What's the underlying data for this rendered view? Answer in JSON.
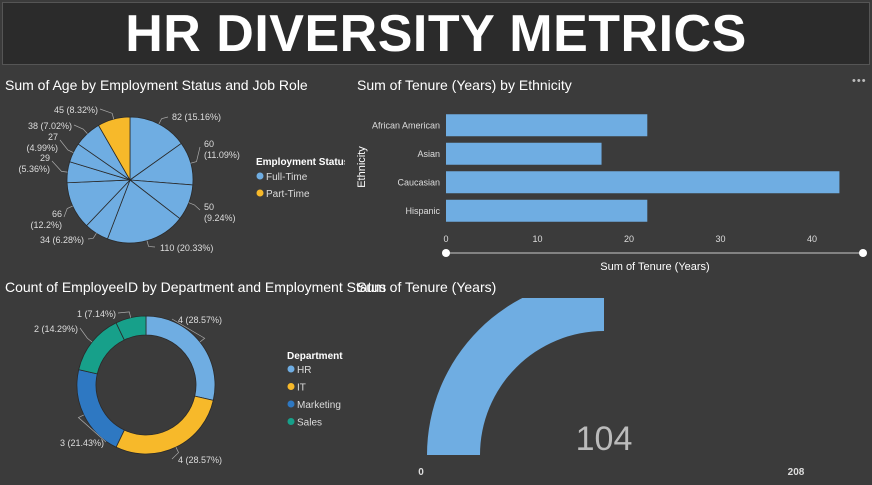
{
  "header": {
    "title": "HR DIVERSITY METRICS"
  },
  "colors": {
    "full_time": "#6fade2",
    "part_time": "#f7b92a",
    "hr": "#6fade2",
    "it": "#f7b92a",
    "marketing": "#2e78c2",
    "sales": "#17a08a",
    "bar": "#6fade2"
  },
  "panels": {
    "pie": {
      "title": "Sum of Age by Employment Status and Job Role"
    },
    "bar": {
      "title": "Sum of Tenure (Years) by Ethnicity",
      "more_icon": "more-options-icon"
    },
    "donut": {
      "title": "Count of EmployeeID by Department and Employment Status"
    },
    "gauge": {
      "title": "Sum of Tenure (Years)"
    }
  },
  "chart_data": [
    {
      "type": "pie",
      "title": "Sum of Age by Employment Status and Job Role",
      "legend": {
        "title": "Employment Status",
        "entries": [
          "Full-Time",
          "Part-Time"
        ]
      },
      "slices": [
        {
          "value": 82,
          "label": "82 (15.16%)",
          "status": "Full-Time"
        },
        {
          "value": 60,
          "label": "60 (11.09%)",
          "status": "Full-Time"
        },
        {
          "value": 50,
          "label": "50 (9.24%)",
          "status": "Full-Time"
        },
        {
          "value": 110,
          "label": "110 (20.33%)",
          "status": "Full-Time"
        },
        {
          "value": 34,
          "label": "34 (6.28%)",
          "status": "Full-Time"
        },
        {
          "value": 66,
          "label": "66 (12.2%)",
          "status": "Full-Time"
        },
        {
          "value": 29,
          "label": "29 (5.36%)",
          "status": "Full-Time"
        },
        {
          "value": 27,
          "label": "27 (4.99%)",
          "status": "Full-Time"
        },
        {
          "value": 38,
          "label": "38 (7.02%)",
          "status": "Full-Time"
        },
        {
          "value": 45,
          "label": "45 (8.32%)",
          "status": "Part-Time"
        }
      ]
    },
    {
      "type": "bar",
      "orientation": "horizontal",
      "title": "Sum of Tenure (Years) by Ethnicity",
      "categories": [
        "African American",
        "Asian",
        "Caucasian",
        "Hispanic"
      ],
      "values": [
        22,
        17,
        43,
        22
      ],
      "xlabel": "Sum of Tenure (Years)",
      "ylabel": "Ethnicity",
      "xlim": [
        0,
        43.5
      ],
      "xticks": [
        "0",
        "10",
        "20",
        "30",
        "40"
      ]
    },
    {
      "type": "pie",
      "variant": "donut",
      "title": "Count of EmployeeID by Department and Employment Status",
      "legend": {
        "title": "Department",
        "entries": [
          "HR",
          "IT",
          "Marketing",
          "Sales"
        ]
      },
      "slices": [
        {
          "value": 4,
          "label": "4 (28.57%)",
          "department": "HR"
        },
        {
          "value": 4,
          "label": "4 (28.57%)",
          "department": "IT"
        },
        {
          "value": 3,
          "label": "3 (21.43%)",
          "department": "Marketing"
        },
        {
          "value": 2,
          "label": "2 (14.29%)",
          "department": "Sales"
        },
        {
          "value": 1,
          "label": "1 (7.14%)",
          "department": "Sales"
        }
      ]
    },
    {
      "type": "gauge",
      "title": "Sum of Tenure (Years)",
      "value": 104,
      "min": 0,
      "max": 208,
      "value_label": "104",
      "min_label": "0",
      "max_label": "208"
    }
  ]
}
